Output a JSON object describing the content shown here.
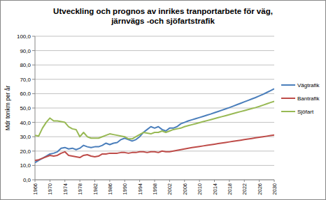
{
  "chart_data": {
    "type": "line",
    "title": "Utveckling och prognos av inrikes tranportarbete för väg, järnvägs -och sjöfartstrafik",
    "y_label": "Mdr tonkm per år",
    "x": [
      1966,
      1967,
      1968,
      1969,
      1970,
      1971,
      1972,
      1973,
      1974,
      1975,
      1976,
      1977,
      1978,
      1979,
      1980,
      1981,
      1982,
      1983,
      1984,
      1985,
      1986,
      1987,
      1988,
      1989,
      1990,
      1991,
      1992,
      1993,
      1994,
      1995,
      1996,
      1997,
      1998,
      1999,
      2000,
      2001,
      2002,
      2003,
      2004,
      2005,
      2006,
      2007,
      2008,
      2009,
      2010,
      2011,
      2012,
      2013,
      2014,
      2015,
      2016,
      2017,
      2018,
      2019,
      2020,
      2021,
      2022,
      2023,
      2024,
      2025,
      2026,
      2027,
      2028,
      2029,
      2030
    ],
    "series": [
      {
        "name": "Vägtrafik",
        "color": "#4a7ebb",
        "values": [
          12,
          13.5,
          15,
          16.5,
          18,
          18.5,
          19.5,
          22,
          22.5,
          21.5,
          22,
          21,
          22,
          24,
          23,
          22.5,
          23,
          23,
          24,
          25.5,
          24.5,
          25.5,
          26,
          28,
          29,
          28,
          27,
          28,
          30,
          33,
          35,
          37,
          36,
          37,
          35,
          34,
          36,
          36,
          37,
          39,
          40,
          41,
          41.8,
          42.6,
          43.4,
          44.2,
          45,
          45.8,
          46.7,
          47.6,
          48.5,
          49.4,
          50.3,
          51.3,
          52.3,
          53.3,
          54.3,
          55.3,
          56.3,
          57.3,
          58.4,
          59.5,
          60.8,
          62.1,
          63.4
        ]
      },
      {
        "name": "Bantrafik",
        "color": "#be4b48",
        "values": [
          13.5,
          14,
          15,
          16,
          17,
          16.5,
          17,
          18.5,
          19.5,
          17,
          16.5,
          16,
          15.5,
          17,
          17.5,
          16.5,
          16,
          16.5,
          18,
          18,
          18.5,
          18.5,
          18.5,
          19,
          19,
          18.5,
          19,
          19,
          19.5,
          19.5,
          19,
          19.5,
          19.5,
          19,
          20,
          19.5,
          19.5,
          20,
          20.5,
          21,
          21.5,
          22,
          22.4,
          22.8,
          23.2,
          23.6,
          24,
          24.4,
          24.8,
          25.2,
          25.6,
          26,
          26.4,
          26.8,
          27.2,
          27.6,
          28,
          28.4,
          28.8,
          29.2,
          29.6,
          30,
          30.4,
          30.8,
          31.2
        ]
      },
      {
        "name": "Sjöfart",
        "color": "#98b954",
        "values": [
          31,
          30.5,
          36,
          40,
          43,
          41,
          41,
          40.5,
          40,
          37,
          35.5,
          35,
          30,
          33,
          30,
          29,
          29,
          29,
          30,
          31,
          32,
          31.5,
          31,
          30.5,
          30,
          28.5,
          28.5,
          30,
          31.5,
          33,
          32.5,
          32,
          33,
          33,
          34,
          33,
          34,
          35,
          35.5,
          36,
          37,
          37.7,
          38.4,
          39.1,
          39.8,
          40.5,
          41.2,
          41.9,
          42.6,
          43.3,
          44,
          44.7,
          45.4,
          46.1,
          46.8,
          47.5,
          48.2,
          48.9,
          49.6,
          50.3,
          51.1,
          52,
          52.9,
          53.8,
          54.7
        ]
      }
    ],
    "xlim": [
      1966,
      2030
    ],
    "xticks": [
      1966,
      1970,
      1974,
      1978,
      1982,
      1986,
      1990,
      1994,
      1998,
      2002,
      2006,
      2010,
      2014,
      2018,
      2022,
      2026,
      2030
    ],
    "ylim": [
      0,
      100
    ],
    "yticks": [
      {
        "value": 0,
        "label": "0,0"
      },
      {
        "value": 10,
        "label": "10,0"
      },
      {
        "value": 20,
        "label": "20,0"
      },
      {
        "value": 30,
        "label": "30,0"
      },
      {
        "value": 40,
        "label": "40,0"
      },
      {
        "value": 50,
        "label": "50,0"
      },
      {
        "value": 60,
        "label": "60,0"
      },
      {
        "value": 70,
        "label": "70,0"
      },
      {
        "value": 80,
        "label": "80,0"
      },
      {
        "value": 90,
        "label": "90,0"
      },
      {
        "value": 100,
        "label": "100,0"
      }
    ],
    "grid": true,
    "legend": "right"
  }
}
